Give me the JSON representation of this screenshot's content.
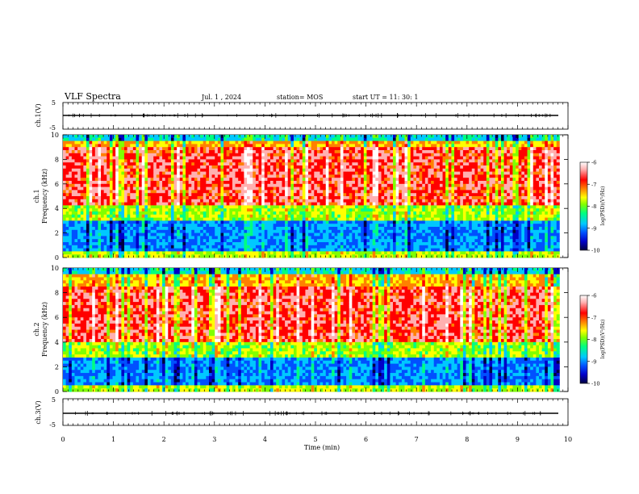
{
  "header": {
    "title": "VLF Spectra",
    "date": "Jul.  1  , 2024",
    "station": "station= MOS",
    "start": "start  UT =   11: 30: 1"
  },
  "chart_data": [
    {
      "type": "line",
      "name": "ch.1 waveform",
      "ylabel": "ch.1(V)",
      "ylim": [
        -5,
        5
      ],
      "yticks": [
        "5",
        "-5"
      ],
      "xlim": [
        0,
        10
      ],
      "level": 0
    },
    {
      "type": "heatmap",
      "name": "ch.1 spectrogram",
      "ylabel": "ch.1\nFrequency (kHz)",
      "ylabel_lines": [
        "ch.1",
        "Frequency (kHz)"
      ],
      "ylim": [
        0,
        10
      ],
      "yticks": [
        "0",
        "2",
        "4",
        "6",
        "8",
        "10"
      ],
      "xlim": [
        0,
        9.83
      ],
      "intense_band_khz": [
        4.2,
        9.0
      ],
      "colorbar": {
        "label": "log(PSD)(V²/Hz)",
        "range": [
          -10,
          -6
        ],
        "ticks": [
          "-6",
          "-7",
          "-8",
          "-9",
          "-10"
        ]
      }
    },
    {
      "type": "heatmap",
      "name": "ch.2 spectrogram",
      "ylabel": "ch.2\nFrequency (kHz)",
      "ylabel_lines": [
        "ch.2",
        "Frequency (kHz)"
      ],
      "ylim": [
        0,
        10
      ],
      "yticks": [
        "0",
        "2",
        "4",
        "6",
        "8",
        "10"
      ],
      "xlim": [
        0,
        9.83
      ],
      "intense_band_khz": [
        4.0,
        8.6
      ],
      "colorbar": {
        "label": "log(PSD)(V²/Hz)",
        "range": [
          -10,
          -6
        ],
        "ticks": [
          "-6",
          "-7",
          "-8",
          "-9",
          "-10"
        ]
      }
    },
    {
      "type": "line",
      "name": "ch.3 waveform",
      "ylabel": "ch.3(V)",
      "ylim": [
        -5,
        5
      ],
      "yticks": [
        "5",
        "-5"
      ],
      "xlim": [
        0,
        10
      ],
      "level": 0
    }
  ],
  "xaxis": {
    "label": "Time (min)",
    "range": [
      0,
      10
    ],
    "ticks": [
      "0",
      "1",
      "2",
      "3",
      "4",
      "5",
      "6",
      "7",
      "8",
      "9",
      "10"
    ]
  },
  "colormap": [
    "#000040",
    "#0000c8",
    "#0050ff",
    "#00c8ff",
    "#00ff80",
    "#80ff00",
    "#ffff00",
    "#ff8000",
    "#ff0000",
    "#ffb0b0",
    "#ffffff"
  ]
}
